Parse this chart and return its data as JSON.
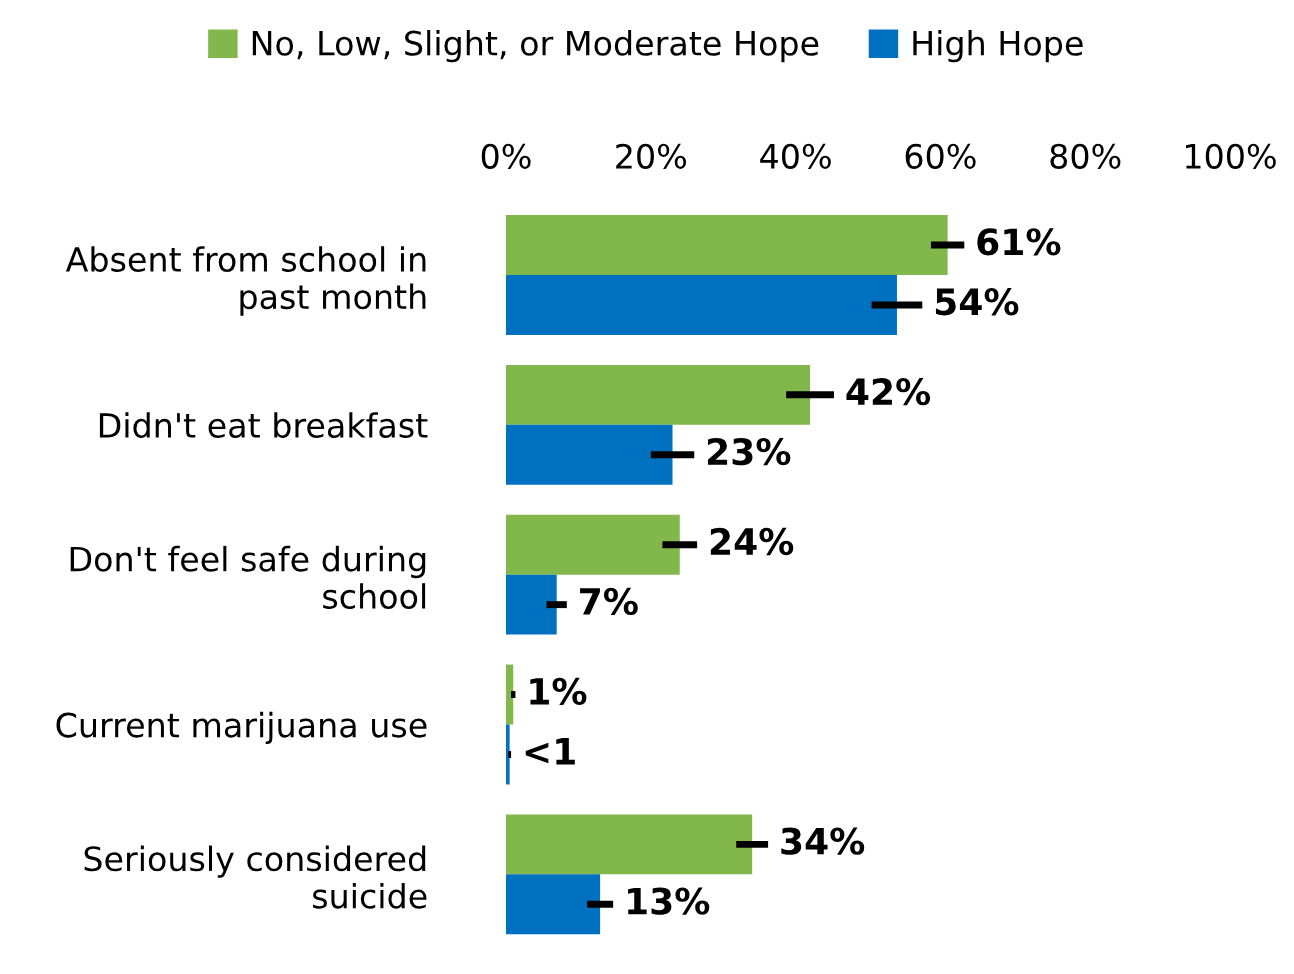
{
  "chart_data": {
    "type": "bar",
    "orientation": "horizontal",
    "categories": [
      "Absent from school in\npast month",
      "Didn't eat breakfast",
      "Don't feel safe during\nschool",
      "Current marijuana use",
      "Seriously considered\nsuicide"
    ],
    "series": [
      {
        "name": "No, Low, Slight, or Moderate Hope",
        "color": "#82b74b",
        "values": [
          61,
          42,
          24,
          1,
          34
        ],
        "errors": [
          2.3,
          3.3,
          2.4,
          0.3,
          2.2
        ],
        "value_labels": [
          "61%",
          "42%",
          "24%",
          "1%",
          "34%"
        ]
      },
      {
        "name": "High Hope",
        "color": "#0070c0",
        "values": [
          54,
          23,
          7,
          0.5,
          13
        ],
        "errors": [
          3.5,
          3,
          1.4,
          0.2,
          1.8
        ],
        "value_labels": [
          "54%",
          "23%",
          "7%",
          "<1",
          "13%"
        ]
      }
    ],
    "xlim": [
      0,
      100
    ],
    "xticks": [
      {
        "value": 0,
        "label": "0%"
      },
      {
        "value": 20,
        "label": "20%"
      },
      {
        "value": 40,
        "label": "40%"
      },
      {
        "value": 60,
        "label": "60%"
      },
      {
        "value": 80,
        "label": "80%"
      },
      {
        "value": 100,
        "label": "100%"
      }
    ],
    "legend": "top",
    "grid": false
  }
}
